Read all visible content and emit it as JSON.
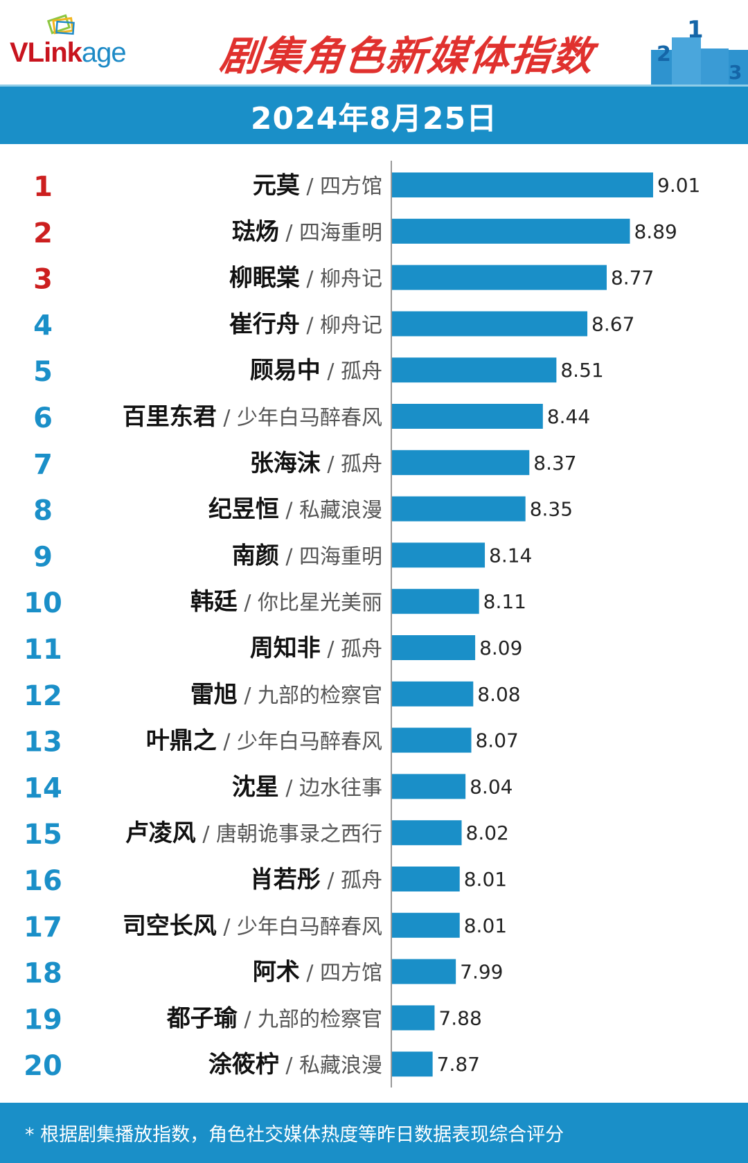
{
  "header": {
    "logo_main": "VLink",
    "logo_suffix": "age",
    "title": "剧集角色新媒体指数",
    "date": "2024年8月25日"
  },
  "footer": {
    "note": "* 根据剧集播放指数，角色社交媒体热度等昨日数据表现综合评分"
  },
  "colors": {
    "bar": "#1a8fc8",
    "rank_top": "#cc1f1f",
    "rank_other": "#1a8fc8",
    "band": "#1a8fc8",
    "title": "#e0312e"
  },
  "chart_data": {
    "type": "bar",
    "orientation": "horizontal",
    "title": "剧集角色新媒体指数",
    "date": "2024年8月25日",
    "items": [
      {
        "rank": "1",
        "name": "元莫",
        "drama": "四方馆",
        "value": 9.01
      },
      {
        "rank": "2",
        "name": "琺炀",
        "drama": "四海重明",
        "value": 8.89
      },
      {
        "rank": "3",
        "name": "柳眠棠",
        "drama": "柳舟记",
        "value": 8.77
      },
      {
        "rank": "4",
        "name": "崔行舟",
        "drama": "柳舟记",
        "value": 8.67
      },
      {
        "rank": "5",
        "name": "顾易中",
        "drama": "孤舟",
        "value": 8.51
      },
      {
        "rank": "6",
        "name": "百里东君",
        "drama": "少年白马醉春风",
        "value": 8.44
      },
      {
        "rank": "7",
        "name": "张海沫",
        "drama": "孤舟",
        "value": 8.37
      },
      {
        "rank": "8",
        "name": "纪昱恒",
        "drama": "私藏浪漫",
        "value": 8.35
      },
      {
        "rank": "9",
        "name": "南颜",
        "drama": "四海重明",
        "value": 8.14
      },
      {
        "rank": "10",
        "name": "韩廷",
        "drama": "你比星光美丽",
        "value": 8.11
      },
      {
        "rank": "11",
        "name": "周知非",
        "drama": "孤舟",
        "value": 8.09
      },
      {
        "rank": "12",
        "name": "雷旭",
        "drama": "九部的检察官",
        "value": 8.08
      },
      {
        "rank": "13",
        "name": "叶鼎之",
        "drama": "少年白马醉春风",
        "value": 8.07
      },
      {
        "rank": "14",
        "name": "沈星",
        "drama": "边水往事",
        "value": 8.04
      },
      {
        "rank": "15",
        "name": "卢凌风",
        "drama": "唐朝诡事录之西行",
        "value": 8.02
      },
      {
        "rank": "16",
        "name": "肖若彤",
        "drama": "孤舟",
        "value": 8.01
      },
      {
        "rank": "17",
        "name": "司空长风",
        "drama": "少年白马醉春风",
        "value": 8.01
      },
      {
        "rank": "18",
        "name": "阿术",
        "drama": "四方馆",
        "value": 7.99
      },
      {
        "rank": "19",
        "name": "都子瑜",
        "drama": "九部的检察官",
        "value": 7.88
      },
      {
        "rank": "20",
        "name": "涂筱柠",
        "drama": "私藏浪漫",
        "value": 7.87
      }
    ]
  }
}
